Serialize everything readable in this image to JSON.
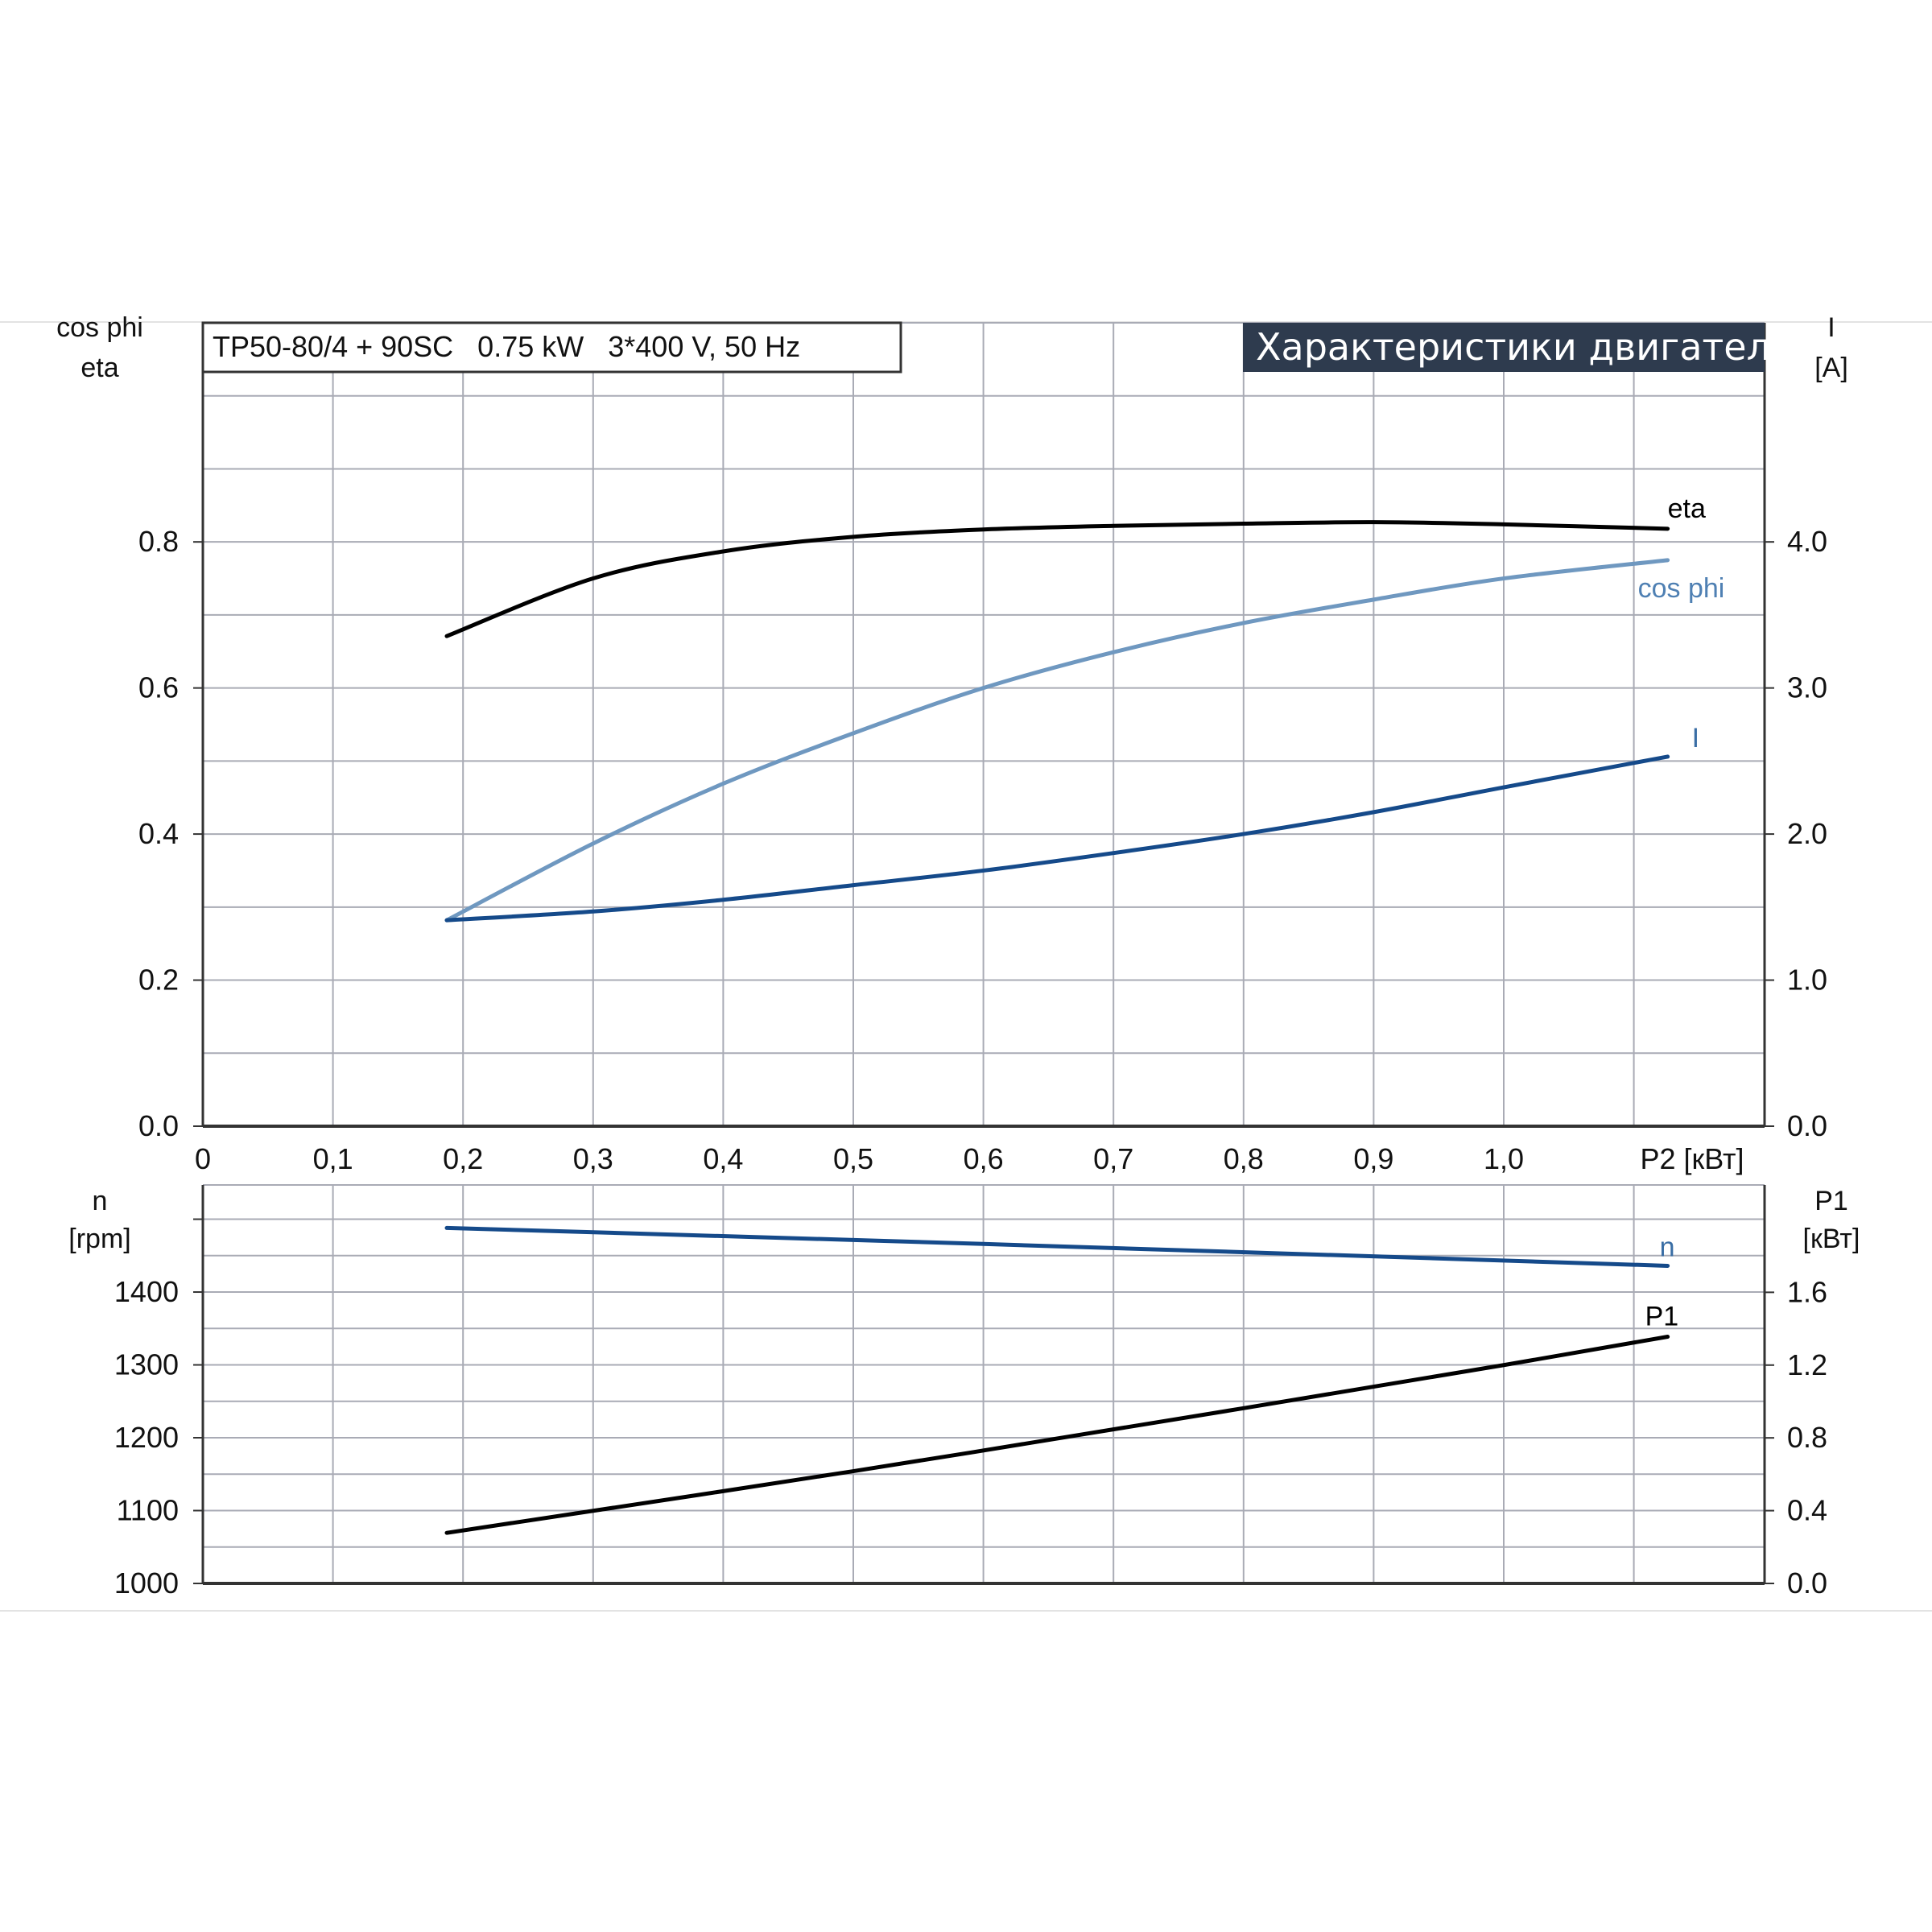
{
  "header": {
    "model_info": "TP50-80/4 + 90SC   0.75 kW   3*400 V, 50 Hz",
    "title": "Характеристики двигателя",
    "title_bg": "#2e3b4e"
  },
  "chart_data": [
    {
      "type": "line",
      "xlabel": "P2 [кВт]",
      "xlim": [
        0,
        1.2
      ],
      "x_ticks": [
        "0",
        "0,1",
        "0,2",
        "0,3",
        "0,4",
        "0,5",
        "0,6",
        "0,7",
        "0,8",
        "0,9",
        "1,0"
      ],
      "left_axis": {
        "label_line1": "cos phi",
        "label_line2": "eta",
        "ylim": [
          0,
          1.1
        ],
        "ticks": [
          "0.0",
          "0.2",
          "0.4",
          "0.6",
          "0.8"
        ]
      },
      "right_axis": {
        "label_line1": "I",
        "label_line2": "[A]",
        "ylim": [
          0,
          5.5
        ],
        "ticks": [
          "0.0",
          "1.0",
          "2.0",
          "3.0",
          "4.0"
        ]
      },
      "grid": true,
      "series": [
        {
          "name": "eta",
          "axis": "left",
          "color": "#000000",
          "x": [
            0.1875,
            0.3,
            0.4,
            0.5,
            0.6,
            0.7,
            0.8,
            0.9,
            1.0,
            1.126
          ],
          "y": [
            0.671,
            0.75,
            0.787,
            0.807,
            0.817,
            0.822,
            0.825,
            0.827,
            0.824,
            0.818
          ]
        },
        {
          "name": "cos phi",
          "axis": "left",
          "color": "#6f98c0",
          "x": [
            0.1875,
            0.3,
            0.4,
            0.5,
            0.6,
            0.7,
            0.8,
            0.9,
            1.0,
            1.126
          ],
          "y": [
            0.282,
            0.387,
            0.469,
            0.538,
            0.6,
            0.649,
            0.689,
            0.721,
            0.75,
            0.775
          ]
        },
        {
          "name": "I",
          "axis": "right",
          "color": "#154a8a",
          "x": [
            0.1875,
            0.3,
            0.4,
            0.5,
            0.6,
            0.7,
            0.8,
            0.9,
            1.0,
            1.126
          ],
          "y": [
            1.41,
            1.47,
            1.55,
            1.65,
            1.75,
            1.87,
            2.0,
            2.15,
            2.32,
            2.53
          ]
        }
      ]
    },
    {
      "type": "line",
      "xlim": [
        0,
        1.2
      ],
      "left_axis": {
        "label_line1": "n",
        "label_line2": "[rpm]",
        "ylim": [
          1000,
          1547
        ],
        "ticks": [
          "1000",
          "1100",
          "1200",
          "1300",
          "1400"
        ]
      },
      "right_axis": {
        "label_line1": "P1",
        "label_line2": "[кВт]",
        "ylim": [
          0,
          2.19
        ],
        "ticks": [
          "0.0",
          "0.4",
          "0.8",
          "1.2",
          "1.6"
        ]
      },
      "grid": true,
      "series": [
        {
          "name": "n",
          "axis": "left",
          "color": "#154a8a",
          "x": [
            0.1875,
            0.6,
            1.126
          ],
          "y": [
            1488,
            1466,
            1436
          ]
        },
        {
          "name": "P1",
          "axis": "right",
          "color": "#000000",
          "x": [
            0.1875,
            0.5,
            0.8,
            1.0,
            1.126
          ],
          "y": [
            0.278,
            0.617,
            0.963,
            1.2,
            1.356
          ]
        }
      ]
    }
  ]
}
